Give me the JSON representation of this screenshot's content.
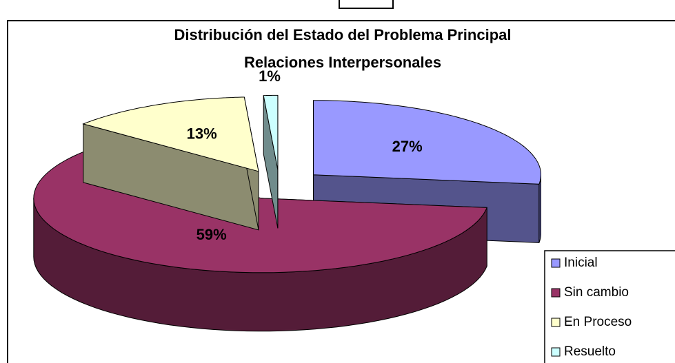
{
  "chart_data": {
    "type": "pie",
    "title": [
      "Distribución del Estado del Problema Principal",
      "Relaciones Interpersonales"
    ],
    "categories": [
      "Inicial",
      "Sin cambio",
      "En Proceso",
      "Resuelto"
    ],
    "values": [
      27,
      59,
      13,
      1
    ],
    "value_labels": [
      "27%",
      "59%",
      "13%",
      "1%"
    ],
    "colors": [
      "#9999ff",
      "#993366",
      "#ffffcc",
      "#ccffff"
    ],
    "legend": "right"
  }
}
